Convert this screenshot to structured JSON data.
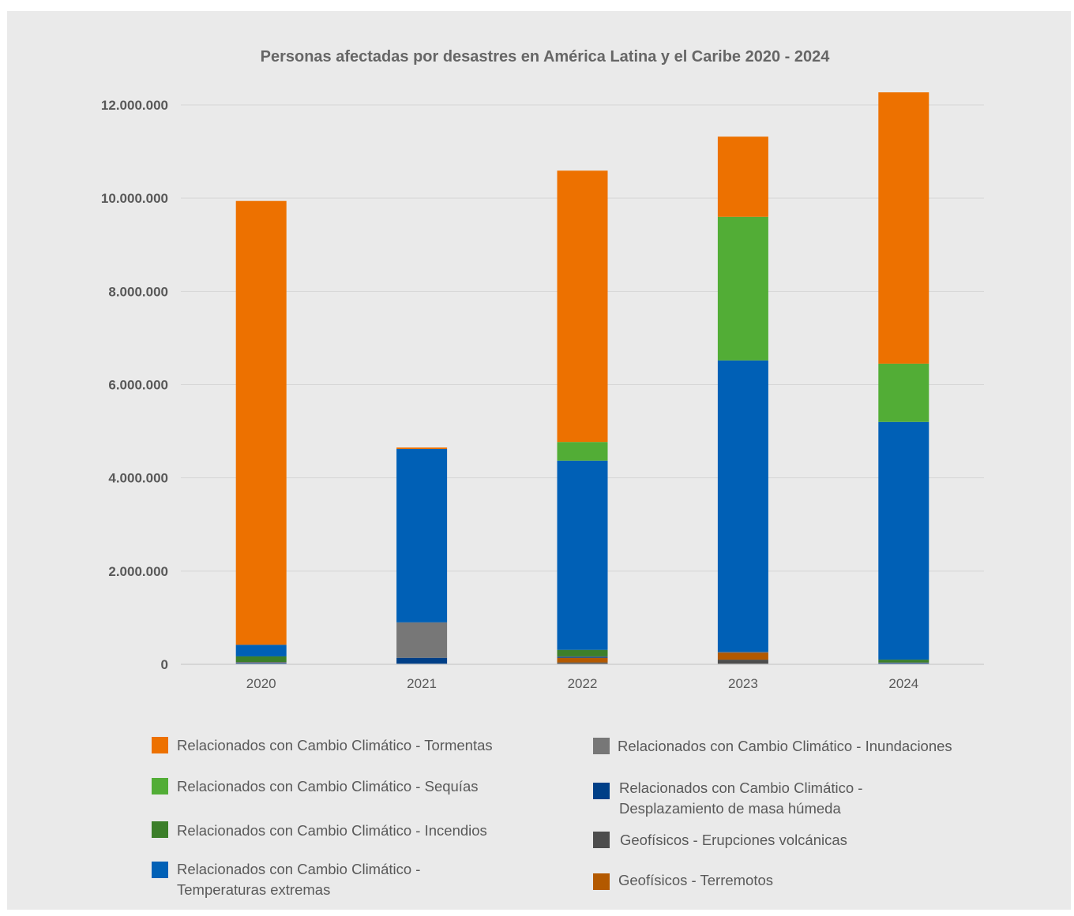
{
  "chart_data": {
    "type": "bar",
    "stacked": true,
    "title": "Personas afectadas por desastres en América Latina y el Caribe 2020 - 2024",
    "xlabel": "",
    "ylabel": "",
    "categories": [
      "2020",
      "2021",
      "2022",
      "2023",
      "2024"
    ],
    "ylim": [
      0,
      12000000
    ],
    "yticks": [
      0,
      2000000,
      4000000,
      6000000,
      8000000,
      10000000,
      12000000
    ],
    "ytick_labels": [
      "0",
      "2.000.000",
      "4.000.000",
      "6.000.000",
      "8.000.000",
      "10.000.000",
      "12.000.000"
    ],
    "grid": true,
    "legend_position": "bottom",
    "series": [
      {
        "name": "Geofísicos - Erupciones volcánicas",
        "color": "#4d4d4d",
        "values": [
          10000,
          0,
          40000,
          100000,
          0
        ]
      },
      {
        "name": "Geofísicos - Terremotos",
        "color": "#b35900",
        "values": [
          0,
          0,
          100000,
          150000,
          0
        ]
      },
      {
        "name": "Relacionados con Cambio Climático - Desplazamiento de masa húmeda",
        "color": "#003f87",
        "values": [
          20000,
          140000,
          20000,
          10000,
          30000
        ]
      },
      {
        "name": "Relacionados con Cambio Climático - Inundaciones",
        "color": "#777777",
        "values": [
          20000,
          760000,
          10000,
          10000,
          10000
        ]
      },
      {
        "name": "Relacionados con Cambio Climático - Incendios",
        "color": "#3c7f2a",
        "values": [
          120000,
          0,
          140000,
          0,
          60000
        ]
      },
      {
        "name": "Relacionados con Cambio Climático - Temperaturas extremas",
        "color": "#0060b6",
        "values": [
          250000,
          3720000,
          4060000,
          6250000,
          5100000
        ]
      },
      {
        "name": "Relacionados con Cambio Climático - Sequías",
        "color": "#52ad36",
        "values": [
          0,
          0,
          400000,
          3080000,
          1250000
        ]
      },
      {
        "name": "Relacionados con Cambio Climático - Tormentas",
        "color": "#ed7100",
        "values": [
          9520000,
          30000,
          5820000,
          1720000,
          5820000
        ]
      }
    ]
  },
  "legend": [
    {
      "label": "Relacionados con Cambio Climático - Tormentas",
      "color": "#ed7100"
    },
    {
      "label": "Relacionados con Cambio Climático - Sequías",
      "color": "#52ad36"
    },
    {
      "label": "Relacionados con Cambio Climático - Incendios",
      "color": "#3c7f2a"
    },
    {
      "label": "Relacionados con Cambio Climático - Temperaturas extremas",
      "line1": "Relacionados con Cambio Climático -",
      "line2": "Temperaturas extremas",
      "color": "#0060b6"
    },
    {
      "label": "Relacionados con Cambio Climático - Inundaciones",
      "color": "#777777"
    },
    {
      "label": "Relacionados con Cambio Climático - Desplazamiento de masa húmeda",
      "line1": "Relacionados con Cambio Climático -",
      "line2": "Desplazamiento de masa húmeda",
      "color": "#003f87"
    },
    {
      "label": "Geofísicos - Erupciones volcánicas",
      "color": "#4d4d4d"
    },
    {
      "label": "Geofísicos - Terremotos",
      "color": "#b35900"
    }
  ]
}
